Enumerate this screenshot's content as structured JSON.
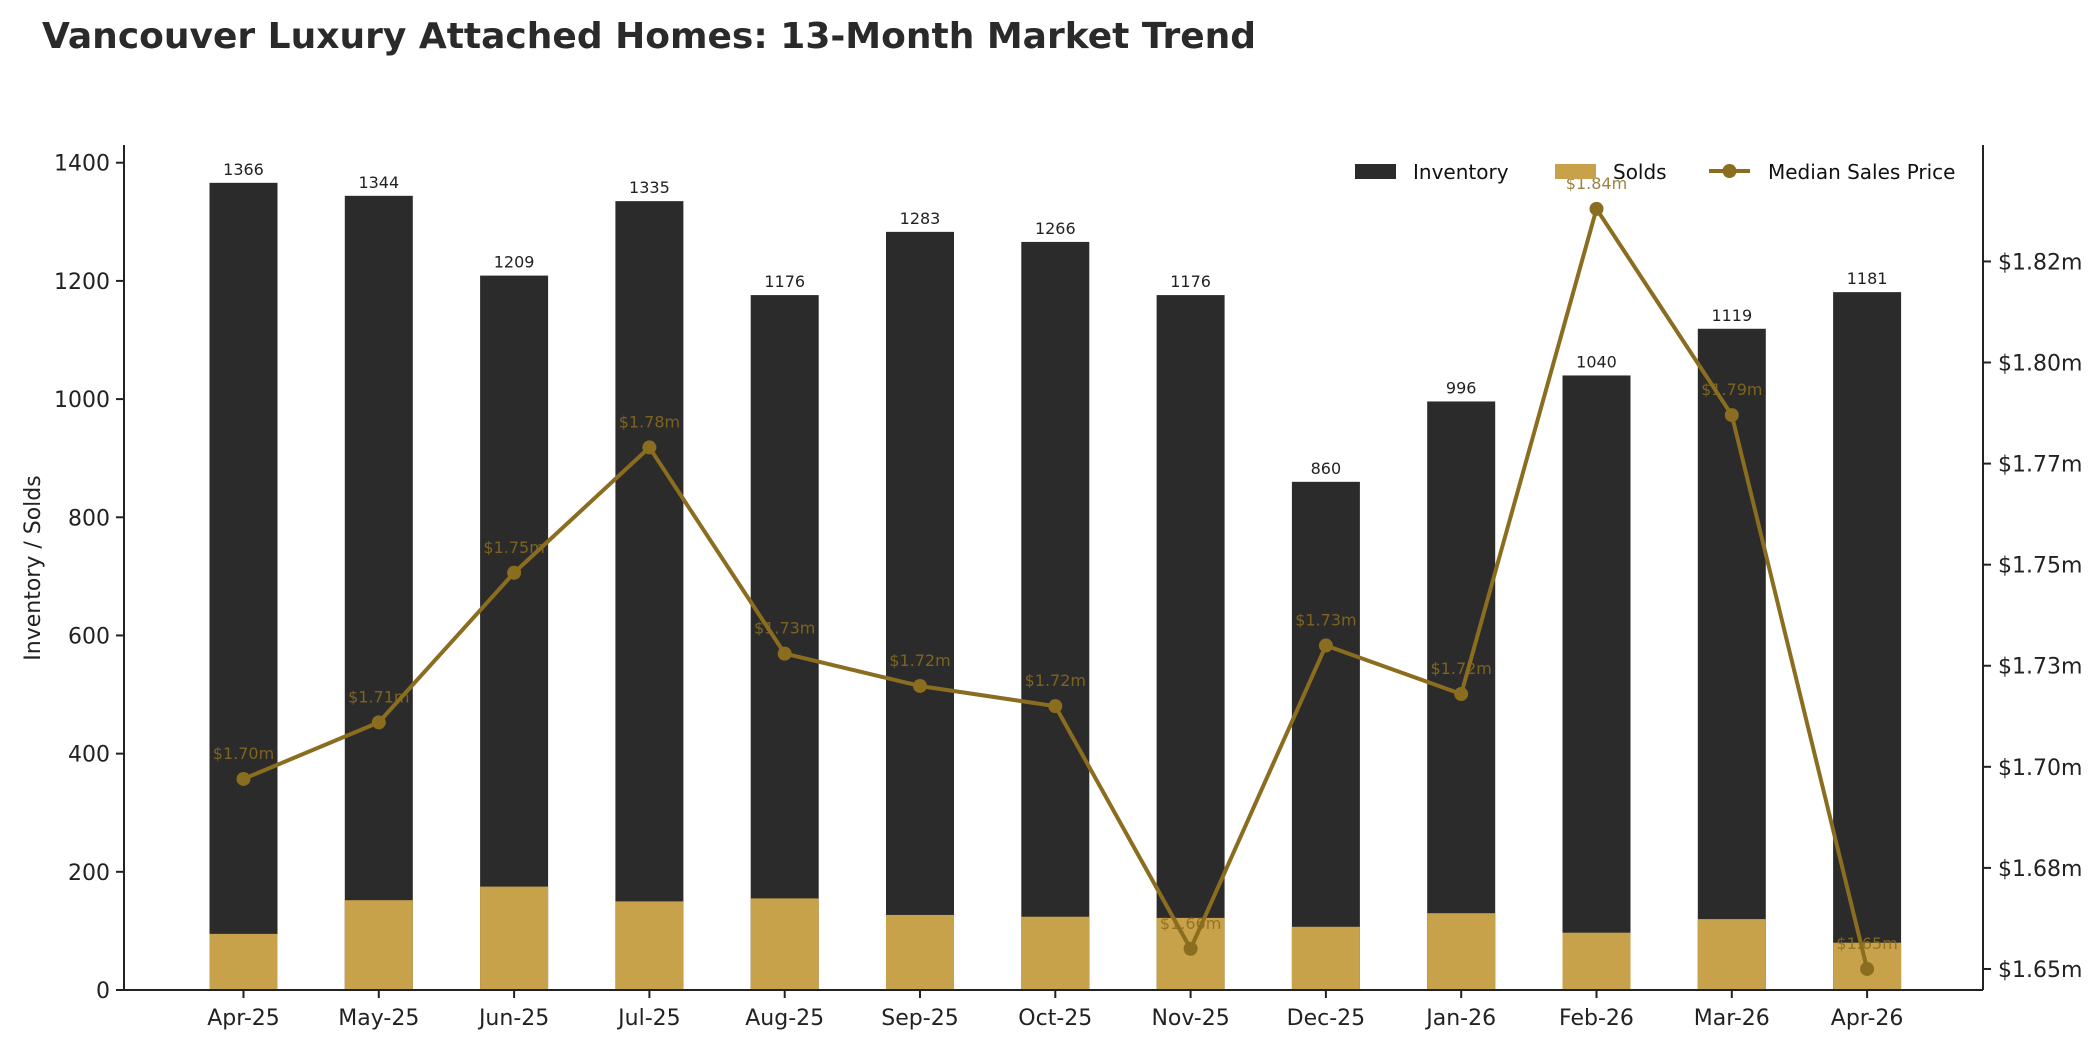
{
  "colors": {
    "inventory": "#2b2b2b",
    "solds": "#c8a24a",
    "price": "#8b6d1f",
    "axis": "#222222"
  },
  "chart_data": {
    "type": "bar",
    "title": "Vancouver Luxury Attached Homes: 13-Month Market Trend",
    "xlabel": "",
    "ylabel": "Inventory / Solds",
    "categories": [
      "Apr-25",
      "May-25",
      "Jun-25",
      "Jul-25",
      "Aug-25",
      "Sep-25",
      "Oct-25",
      "Nov-25",
      "Dec-25",
      "Jan-26",
      "Feb-26",
      "Mar-26",
      "Apr-26"
    ],
    "ylim": [
      0,
      1430
    ],
    "yticks": [
      0,
      200,
      400,
      600,
      800,
      1000,
      1200,
      1400
    ],
    "y2lim": [
      1.6448,
      1.8538
    ],
    "y2ticks": [
      1.65,
      1.675,
      1.7,
      1.725,
      1.75,
      1.775,
      1.8,
      1.825
    ],
    "y2ticklabels": [
      "$1.65m",
      "$1.68m",
      "$1.70m",
      "$1.73m",
      "$1.75m",
      "$1.77m",
      "$1.80m",
      "$1.82m"
    ],
    "legend_position": "top-right",
    "grid": false,
    "series": [
      {
        "name": "Inventory",
        "type": "bar",
        "axis": "left",
        "values": [
          1366,
          1344,
          1209,
          1335,
          1176,
          1283,
          1266,
          1176,
          860,
          996,
          1040,
          1119,
          1181
        ],
        "labels": [
          "1366",
          "1344",
          "1209",
          "1335",
          "1176",
          "1283",
          "1266",
          "1176",
          "860",
          "996",
          "1040",
          "1119",
          "1181"
        ]
      },
      {
        "name": "Solds",
        "type": "bar",
        "axis": "left",
        "values": [
          95,
          152,
          175,
          150,
          155,
          127,
          124,
          122,
          107,
          130,
          97,
          120,
          80
        ]
      },
      {
        "name": "Median Sales Price",
        "type": "line",
        "axis": "right",
        "values": [
          1.697,
          1.711,
          1.748,
          1.779,
          1.728,
          1.72,
          1.715,
          1.655,
          1.73,
          1.718,
          1.838,
          1.787,
          1.65
        ],
        "labels": [
          "$1.70m",
          "$1.71m",
          "$1.75m",
          "$1.78m",
          "$1.73m",
          "$1.72m",
          "$1.72m",
          "$1.66m",
          "$1.73m",
          "$1.72m",
          "$1.84m",
          "$1.79m",
          "$1.65m"
        ]
      }
    ]
  }
}
